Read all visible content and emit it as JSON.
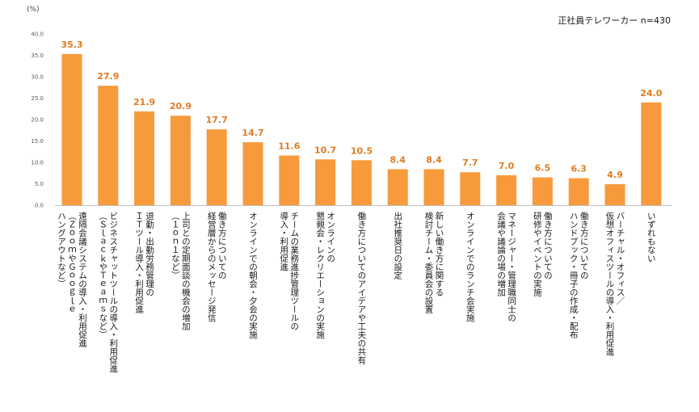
{
  "chart_data": {
    "type": "bar",
    "unit_label": "(%)",
    "note": "正社員テレワーカー n=430",
    "ylim": [
      0,
      40
    ],
    "y_ticks": [
      "0.0",
      "5.0",
      "10.0",
      "15.0",
      "20.0",
      "25.0",
      "30.0",
      "35.0",
      "40.0"
    ],
    "grid": false,
    "bar_color": "#f79a3b",
    "value_color": "#e07b20",
    "categories": [
      [
        "遠隔会議システムの導入・利用促進",
        "（ＺｏｏｍやＧｏｏｇｌｅ",
        "ハングアウトなど）"
      ],
      [
        "ビジネスチャットツールの導入・利用促進",
        "（ＳｌａｃｋやＴｅａｍｓなど）"
      ],
      [
        "退勤・出勤労務管理の",
        "ＩＴツール導入・利用促進"
      ],
      [
        "上司との定期面談の機会の増加",
        "（１ｏｎ１など）"
      ],
      [
        "働き方についての",
        "経営層からのメッセージ発信"
      ],
      [
        "オンラインでの朝会・夕会の実施"
      ],
      [
        "チームの業務進捗管理ツールの",
        "導入・利用促進"
      ],
      [
        "オンラインの",
        "懇親会・レクリエーションの実施"
      ],
      [
        "働き方についてのアイデアや工夫の共有"
      ],
      [
        "出社推奨日の設定"
      ],
      [
        "新しい働き方に関する",
        "検討チーム・委員会の設置"
      ],
      [
        "オンラインでのランチ会実施"
      ],
      [
        "マネージャー・管理職同士の",
        "会議や議論の場の増加"
      ],
      [
        "働き方についての",
        "研修やイベントの実施"
      ],
      [
        "働き方についての",
        "ハンドブック・冊子の作成・配布"
      ],
      [
        "バーチャル・オフィス／",
        "仮想オフィスツールの導入・利用促進"
      ],
      [
        "いずれもない"
      ]
    ],
    "values": [
      35.3,
      27.9,
      21.9,
      20.9,
      17.7,
      14.7,
      11.6,
      10.7,
      10.5,
      8.4,
      8.4,
      7.7,
      7.0,
      6.5,
      6.3,
      4.9,
      24.0
    ],
    "value_labels": [
      "35.3",
      "27.9",
      "21.9",
      "20.9",
      "17.7",
      "14.7",
      "11.6",
      "10.7",
      "10.5",
      "8.4",
      "8.4",
      "7.7",
      "7.0",
      "6.5",
      "6.3",
      "4.9",
      "24.0"
    ]
  }
}
